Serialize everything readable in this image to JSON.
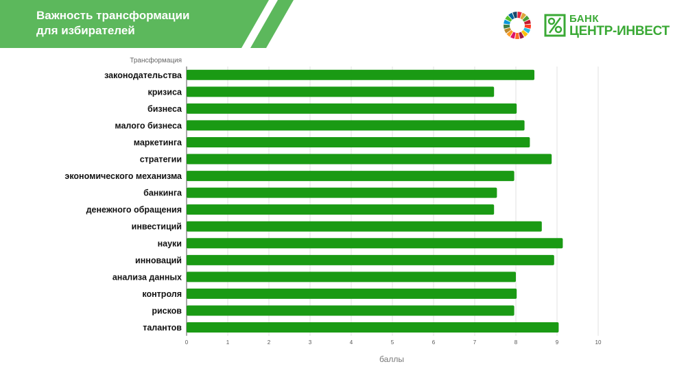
{
  "header": {
    "title_line1": "Важность трансформации",
    "title_line2": "для избирателей"
  },
  "logos": {
    "sdg_icon": "sdg-wheel-icon",
    "bank_name_line1": "БАНК",
    "bank_name_line2": "ЦЕНТР-ИНВЕСТ"
  },
  "colors": {
    "header_green": "#5cb85c",
    "bar_green": "#1a9a14",
    "brand_green": "#3aa935"
  },
  "chart_data": {
    "type": "bar",
    "orientation": "horizontal",
    "title": "",
    "ylabel": "Трансформация",
    "xlabel": "баллы",
    "xlim": [
      0,
      10
    ],
    "xticks": [
      0,
      1,
      2,
      3,
      4,
      5,
      6,
      7,
      8,
      9,
      10
    ],
    "grid": true,
    "categories": [
      "законодательства",
      "кризиса",
      "бизнеса",
      "малого бизнеса",
      "маркетинга",
      "стратегии",
      "экономического механизма",
      "банкинга",
      "денежного обращения",
      "инвестиций",
      "науки",
      "инноваций",
      "анализа данных",
      "контроля",
      "рисков",
      "талантов"
    ],
    "values": [
      8.45,
      7.47,
      8.02,
      8.21,
      8.34,
      8.87,
      7.96,
      7.54,
      7.47,
      8.63,
      9.14,
      8.93,
      8.0,
      8.02,
      7.96,
      9.04
    ]
  }
}
